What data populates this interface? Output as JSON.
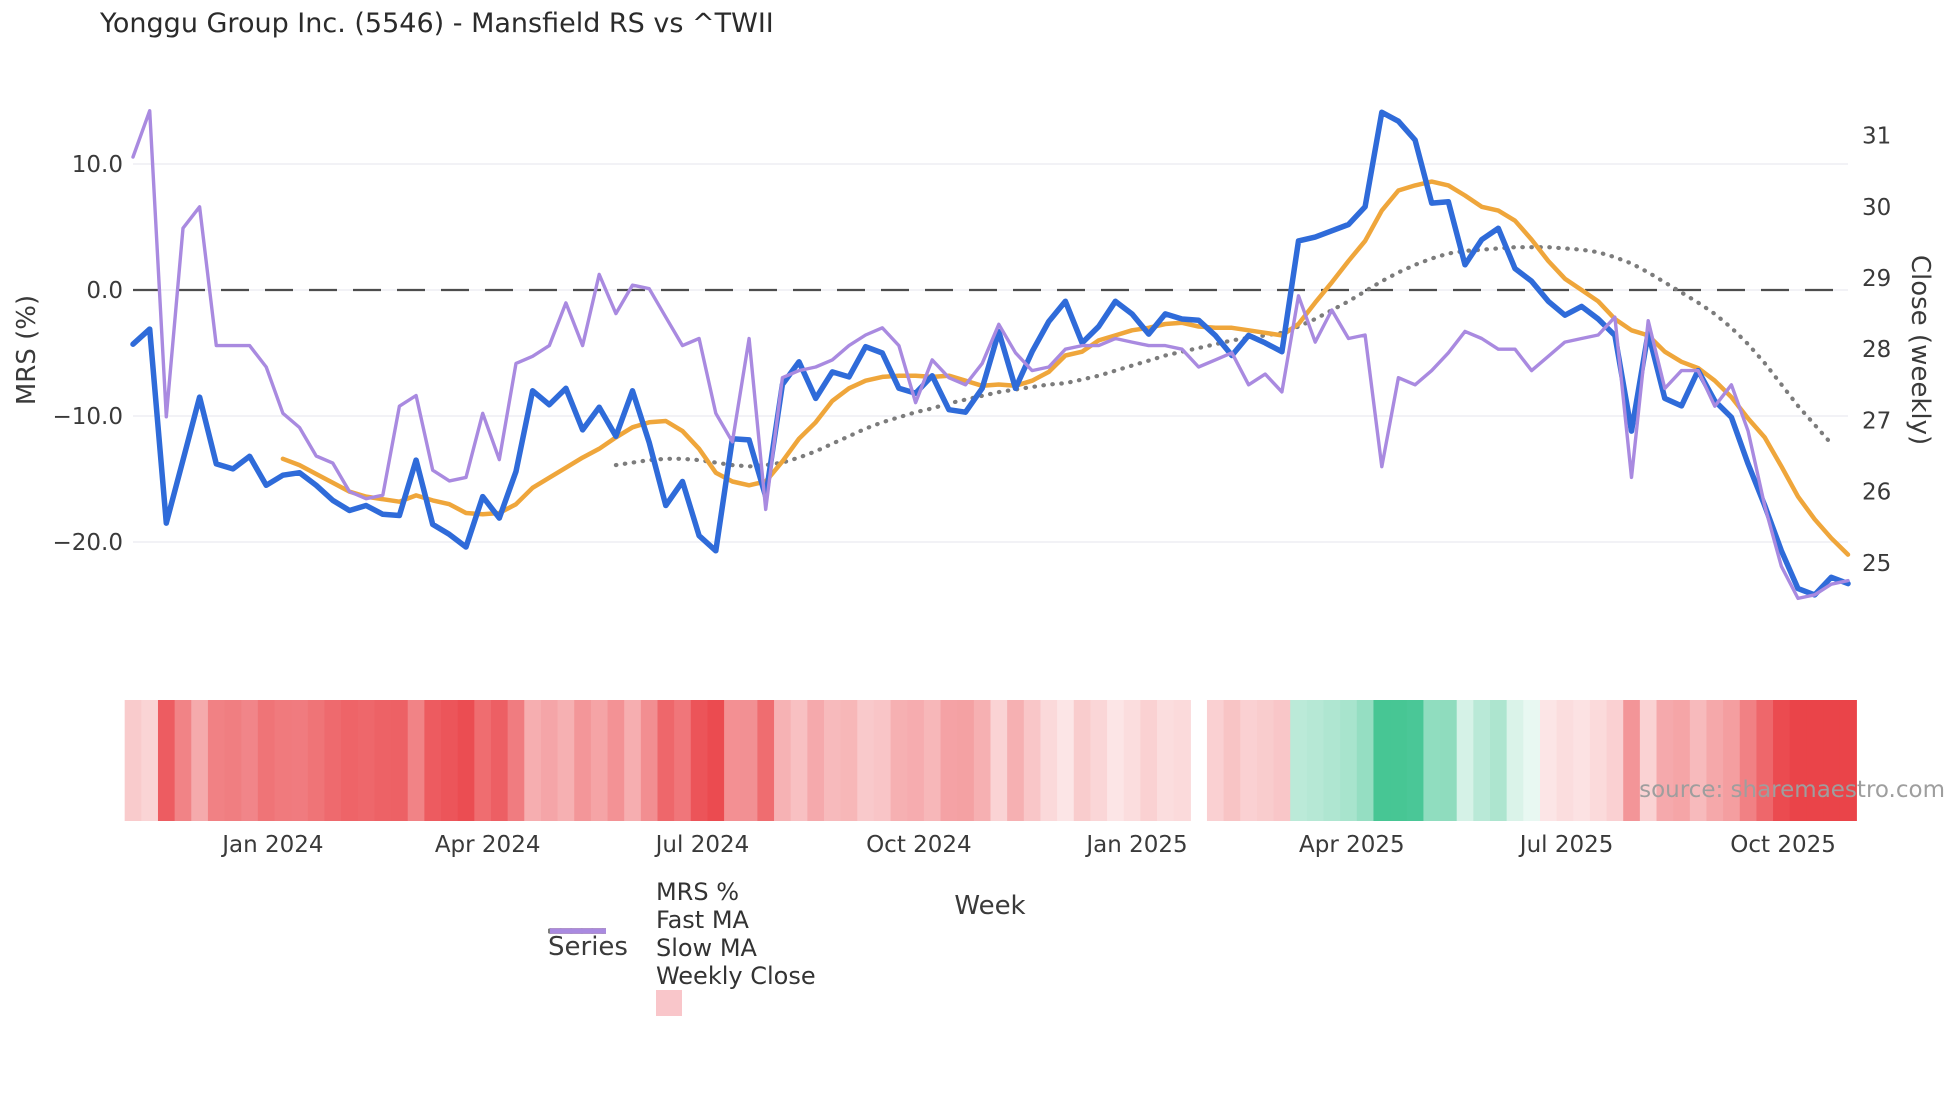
{
  "title": "Yonggu Group Inc. (5546) - Mansfield RS vs ^TWII",
  "watermark": "source: sharemaestro.com",
  "axes": {
    "left": {
      "title": "MRS (%)",
      "ticks": [
        {
          "value": 10,
          "label": "10.0"
        },
        {
          "value": 0,
          "label": "0.0"
        },
        {
          "value": -10,
          "label": "−10.0"
        },
        {
          "value": -20,
          "label": "−20.0"
        }
      ]
    },
    "right": {
      "title": "Close (weekly)",
      "ticks": [
        {
          "value": 31,
          "label": "31"
        },
        {
          "value": 30,
          "label": "30"
        },
        {
          "value": 29,
          "label": "29"
        },
        {
          "value": 28,
          "label": "28"
        },
        {
          "value": 27,
          "label": "27"
        },
        {
          "value": 26,
          "label": "26"
        },
        {
          "value": 25,
          "label": "25"
        }
      ]
    },
    "x": {
      "title": "Week",
      "ticks": [
        {
          "week": 8.4,
          "label": "Jan 2024"
        },
        {
          "week": 21.3,
          "label": "Apr 2024"
        },
        {
          "week": 34.2,
          "label": "Jul 2024"
        },
        {
          "week": 47.2,
          "label": "Oct 2024"
        },
        {
          "week": 60.3,
          "label": "Jan 2025"
        },
        {
          "week": 73.2,
          "label": "Apr 2025"
        },
        {
          "week": 86.1,
          "label": "Jul 2025"
        },
        {
          "week": 99.1,
          "label": "Oct 2025"
        }
      ]
    }
  },
  "legend": {
    "title": "Series",
    "items": [
      {
        "label": "MRS %",
        "style": "line",
        "color": "#2f6bd9"
      },
      {
        "label": "Fast MA",
        "style": "line",
        "color": "#efa63b"
      },
      {
        "label": "Slow MA",
        "style": "dotted",
        "color": "#7c7c7c"
      },
      {
        "label": "Weekly Close",
        "style": "line",
        "color": "#a98ae0"
      },
      {
        "label": "",
        "style": "square",
        "color": "#f9c6ca"
      }
    ]
  },
  "chart_data": {
    "type": "line",
    "x_unit": "week_index",
    "n_weeks": 104,
    "zero_reference_line": 0,
    "ylim_left": [
      -26,
      15.5
    ],
    "ylim_right": [
      24.3,
      31.6
    ],
    "grid": "horizontal-light",
    "legend_position": "bottom",
    "series": [
      {
        "name": "MRS %",
        "axis": "left",
        "color": "#2f6bd9",
        "width": 5.5,
        "dash": "solid",
        "values": [
          -4.3,
          -3.1,
          -18.5,
          -13.5,
          -8.5,
          -13.8,
          -14.2,
          -13.2,
          -15.5,
          -14.7,
          -14.5,
          -15.5,
          -16.7,
          -17.5,
          -17.1,
          -17.8,
          -17.9,
          -13.5,
          -18.6,
          -19.4,
          -20.4,
          -16.4,
          -18.1,
          -14.4,
          -8.0,
          -9.1,
          -7.8,
          -11.1,
          -9.3,
          -11.6,
          -8.0,
          -12.1,
          -17.1,
          -15.2,
          -19.5,
          -20.7,
          -11.8,
          -11.9,
          -16.4,
          -7.5,
          -5.7,
          -8.6,
          -6.5,
          -6.9,
          -4.5,
          -5.0,
          -7.8,
          -8.2,
          -6.8,
          -9.5,
          -9.7,
          -7.8,
          -3.3,
          -7.8,
          -4.9,
          -2.5,
          -0.9,
          -4.2,
          -2.9,
          -0.9,
          -1.9,
          -3.5,
          -1.9,
          -2.3,
          -2.4,
          -3.6,
          -5.2,
          -3.6,
          -4.2,
          -4.9,
          3.9,
          4.2,
          4.7,
          5.2,
          6.6,
          14.1,
          13.4,
          11.9,
          6.9,
          7.0,
          2.0,
          4.0,
          4.9,
          1.7,
          0.7,
          -0.9,
          -2.0,
          -1.3,
          -2.3,
          -3.6,
          -11.2,
          -3.4,
          -8.6,
          -9.2,
          -6.4,
          -8.8,
          -10.1,
          -13.8,
          -17.1,
          -20.7,
          -23.7,
          -24.2,
          -22.8,
          -23.3
        ]
      },
      {
        "name": "Fast MA",
        "axis": "left",
        "color": "#efa63b",
        "width": 4.5,
        "dash": "solid",
        "values": [
          null,
          null,
          null,
          null,
          null,
          null,
          null,
          null,
          null,
          -13.4,
          -13.9,
          -14.6,
          -15.3,
          -16.0,
          -16.4,
          -16.6,
          -16.8,
          -16.3,
          -16.7,
          -17.0,
          -17.7,
          -17.8,
          -17.7,
          -17.0,
          -15.7,
          -14.9,
          -14.1,
          -13.3,
          -12.6,
          -11.7,
          -10.9,
          -10.5,
          -10.4,
          -11.2,
          -12.6,
          -14.5,
          -15.2,
          -15.5,
          -15.2,
          -13.6,
          -11.8,
          -10.5,
          -8.8,
          -7.8,
          -7.2,
          -6.9,
          -6.8,
          -6.8,
          -6.9,
          -6.8,
          -7.2,
          -7.6,
          -7.5,
          -7.6,
          -7.2,
          -6.5,
          -5.2,
          -4.9,
          -4.0,
          -3.6,
          -3.2,
          -3.0,
          -2.7,
          -2.6,
          -2.9,
          -3.0,
          -3.0,
          -3.2,
          -3.4,
          -3.6,
          -2.7,
          -1.0,
          0.6,
          2.3,
          3.9,
          6.3,
          7.9,
          8.3,
          8.6,
          8.3,
          7.5,
          6.6,
          6.3,
          5.5,
          4.0,
          2.3,
          0.9,
          0.0,
          -0.9,
          -2.3,
          -3.2,
          -3.6,
          -4.9,
          -5.7,
          -6.2,
          -7.2,
          -8.5,
          -10.2,
          -11.7,
          -14.0,
          -16.4,
          -18.2,
          -19.7,
          -21.0
        ]
      },
      {
        "name": "Slow MA",
        "axis": "left",
        "color": "#7c7c7c",
        "width": 4.2,
        "dash": "dotted",
        "values": [
          null,
          null,
          null,
          null,
          null,
          null,
          null,
          null,
          null,
          null,
          null,
          null,
          null,
          null,
          null,
          null,
          null,
          null,
          null,
          null,
          null,
          null,
          null,
          null,
          null,
          null,
          null,
          null,
          null,
          -13.9,
          -13.7,
          -13.5,
          -13.4,
          -13.4,
          -13.5,
          -13.7,
          -13.9,
          -14.0,
          -13.9,
          -13.7,
          -13.3,
          -12.8,
          -12.2,
          -11.6,
          -11.0,
          -10.5,
          -10.1,
          -9.7,
          -9.4,
          -9.0,
          -8.7,
          -8.4,
          -8.1,
          -7.9,
          -7.7,
          -7.5,
          -7.4,
          -7.1,
          -6.8,
          -6.4,
          -6.0,
          -5.6,
          -5.2,
          -4.9,
          -4.6,
          -4.3,
          -4.0,
          -3.8,
          -3.6,
          -3.4,
          -2.9,
          -2.3,
          -1.6,
          -0.9,
          -0.1,
          0.7,
          1.4,
          2.0,
          2.5,
          2.9,
          3.1,
          3.2,
          3.3,
          3.4,
          3.4,
          3.4,
          3.3,
          3.2,
          3.0,
          2.6,
          2.1,
          1.4,
          0.6,
          -0.2,
          -1.0,
          -1.9,
          -3.0,
          -4.3,
          -5.8,
          -7.5,
          -9.2,
          -10.7,
          -12.2,
          null
        ]
      },
      {
        "name": "Weekly Close",
        "axis": "right",
        "color": "#a98ae0",
        "width": 3.4,
        "dash": "solid",
        "values": [
          30.7,
          31.35,
          27.05,
          29.7,
          30.0,
          28.05,
          28.05,
          28.05,
          27.75,
          27.1,
          26.9,
          26.5,
          26.4,
          26.0,
          25.9,
          25.95,
          27.2,
          27.35,
          26.3,
          26.15,
          26.2,
          27.1,
          26.45,
          27.8,
          27.9,
          28.05,
          28.65,
          28.05,
          29.05,
          28.5,
          28.9,
          28.85,
          28.45,
          28.05,
          28.15,
          27.1,
          26.7,
          28.15,
          25.75,
          27.6,
          27.7,
          27.75,
          27.85,
          28.05,
          28.2,
          28.3,
          28.05,
          27.25,
          27.85,
          27.6,
          27.5,
          27.8,
          28.35,
          27.95,
          27.7,
          27.75,
          28.0,
          28.05,
          28.05,
          28.15,
          28.1,
          28.05,
          28.05,
          28.0,
          27.75,
          27.85,
          27.95,
          27.5,
          27.65,
          27.4,
          28.75,
          28.1,
          28.55,
          28.15,
          28.2,
          26.35,
          27.6,
          27.5,
          27.7,
          27.95,
          28.25,
          28.15,
          28.0,
          28.0,
          27.7,
          27.9,
          28.1,
          28.15,
          28.2,
          28.45,
          26.2,
          28.4,
          27.45,
          27.7,
          27.7,
          27.2,
          27.5,
          26.85,
          25.8,
          24.95,
          24.5,
          24.55,
          24.7,
          24.75
        ]
      }
    ],
    "heatmap": {
      "description": "weekly strip below plot, color-coded by MRS % value (red negative, green positive)",
      "derived_from": "MRS %",
      "gap_week": 64,
      "negative_color": "#ea4449",
      "positive_color": "#1eb97d"
    }
  }
}
